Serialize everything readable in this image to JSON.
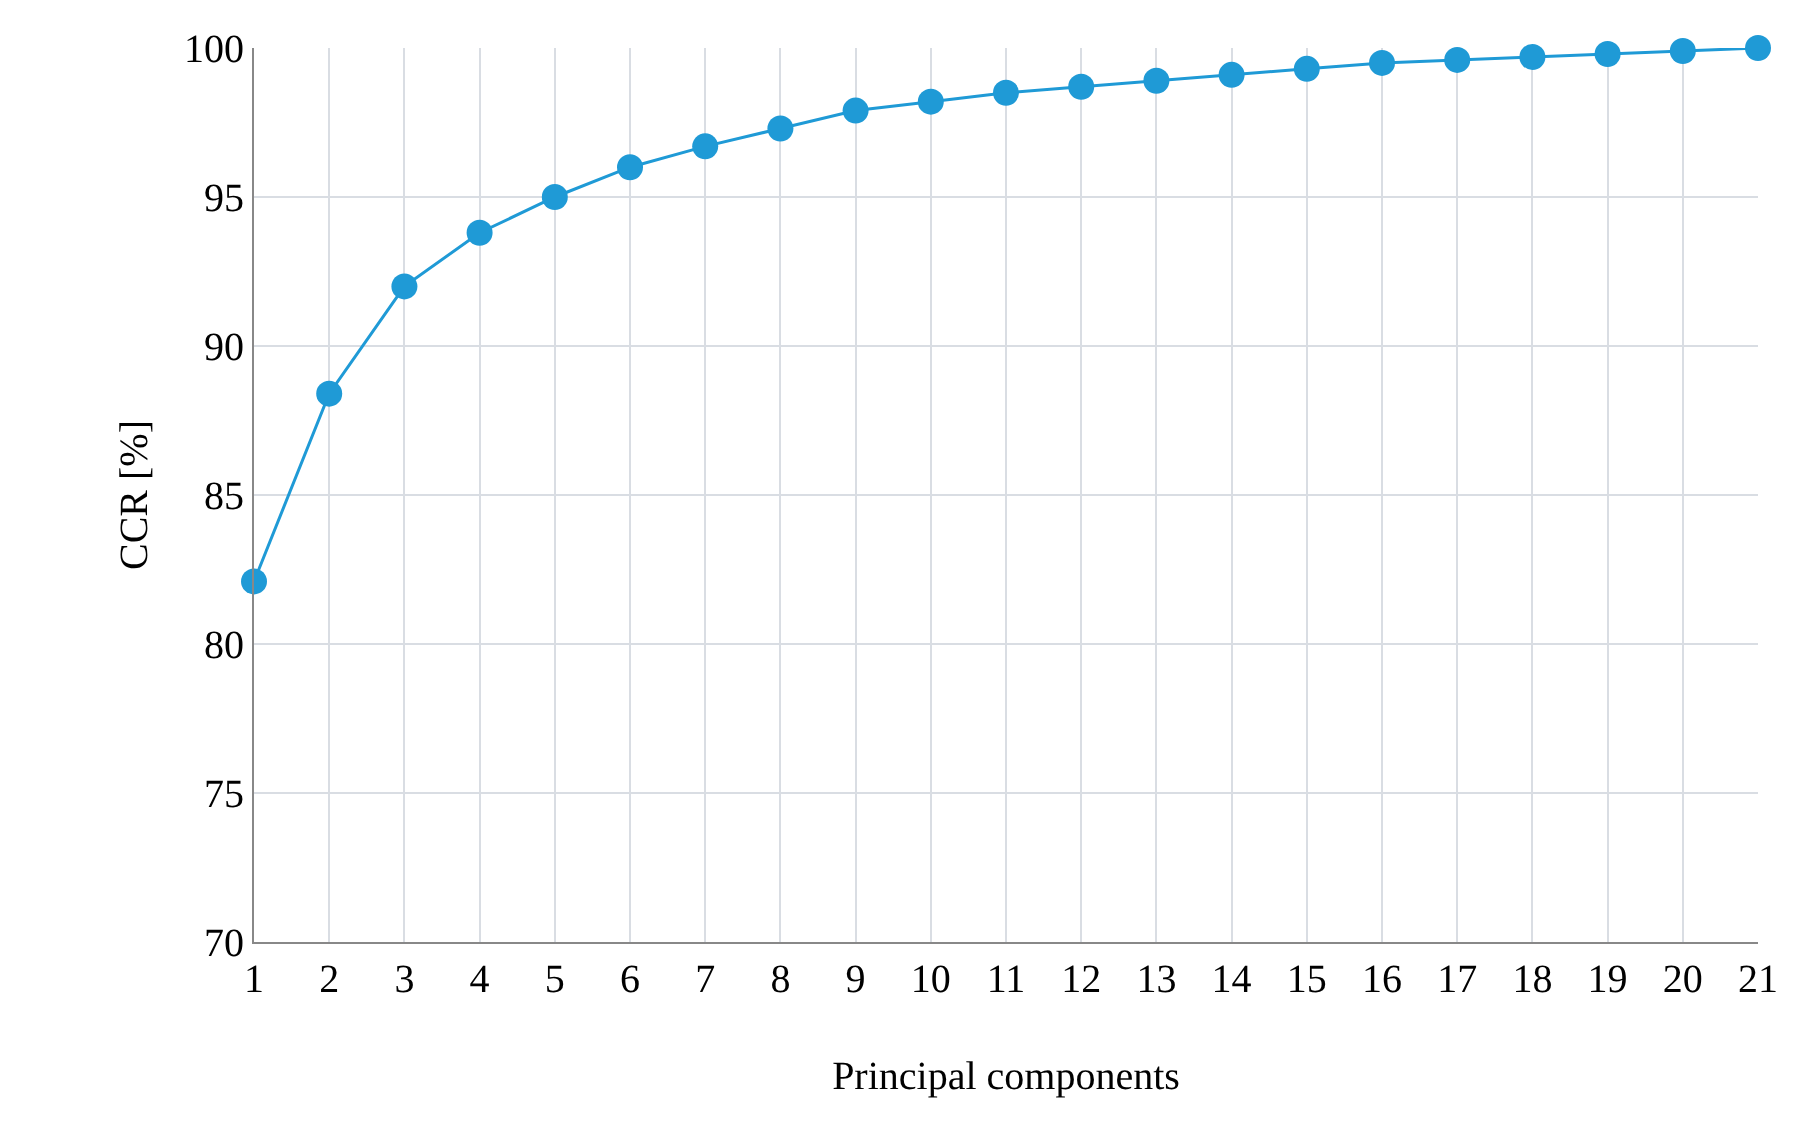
{
  "chart_data": {
    "type": "line",
    "xlabel": "Principal components",
    "ylabel": "CCR [%]",
    "x": [
      1,
      2,
      3,
      4,
      5,
      6,
      7,
      8,
      9,
      10,
      11,
      12,
      13,
      14,
      15,
      16,
      17,
      18,
      19,
      20,
      21
    ],
    "series": [
      {
        "color": "#1f9ad6",
        "values": [
          82.1,
          88.4,
          92.0,
          93.8,
          95.0,
          96.0,
          96.7,
          97.3,
          97.9,
          98.2,
          98.5,
          98.7,
          98.9,
          99.1,
          99.3,
          99.5,
          99.6,
          99.7,
          99.8,
          99.9,
          100
        ]
      }
    ],
    "xlim": [
      1,
      21
    ],
    "xticks": [
      1,
      2,
      3,
      4,
      5,
      6,
      7,
      8,
      9,
      10,
      11,
      12,
      13,
      14,
      15,
      16,
      17,
      18,
      19,
      20,
      21
    ],
    "ylim": [
      70,
      100
    ],
    "yticks": [
      70,
      75,
      80,
      85,
      90,
      95,
      100
    ],
    "grid": true,
    "legend": false,
    "marker": "circle",
    "line_style": "solid"
  }
}
